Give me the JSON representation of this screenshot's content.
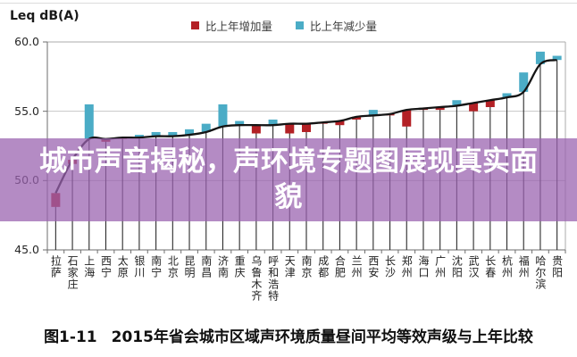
{
  "page": {
    "banner_text": "城市声音揭秘，声环境专题图展现真实面貌",
    "caption_fig": "图1-11",
    "caption_text": "2015年省会城市区域声环境质量昼间平均等效声级与上年比较"
  },
  "chart_data": {
    "type": "line+bar",
    "title": "Leq dB(A)",
    "ylabel": "Leq dB(A)",
    "ylim": [
      45,
      60
    ],
    "yticks": [
      "45.0",
      "50.0",
      "55.0",
      "60.0"
    ],
    "grid": "horizontal",
    "legend_position": "top",
    "legend": [
      {
        "label": "比上年增加量",
        "color": "#b32025"
      },
      {
        "label": "比上年减少量",
        "color": "#4bacc6"
      }
    ],
    "cities": [
      "拉萨",
      "石家庄",
      "上海",
      "西宁",
      "太原",
      "银川",
      "南宁",
      "北京",
      "昆明",
      "南昌",
      "济南",
      "重庆",
      "乌鲁木齐",
      "呼和浩特",
      "天津",
      "南京",
      "成都",
      "合肥",
      "兰州",
      "西安",
      "长沙",
      "郑州",
      "海口",
      "广州",
      "沈阳",
      "武汉",
      "长春",
      "杭州",
      "福州",
      "哈尔滨",
      "贵阳"
    ],
    "values_2015_leq_db": [
      49.1,
      51.5,
      53.0,
      53.0,
      53.1,
      53.1,
      53.2,
      53.2,
      53.3,
      53.5,
      53.9,
      54.0,
      54.0,
      54.0,
      54.1,
      54.1,
      54.2,
      54.3,
      54.6,
      54.7,
      54.8,
      55.1,
      55.2,
      55.3,
      55.4,
      55.6,
      55.8,
      56.0,
      56.4,
      58.4,
      58.7
    ],
    "change_vs_previous_year": [
      1.0,
      0.3,
      -2.5,
      0.2,
      0.1,
      -0.2,
      -0.3,
      -0.3,
      -0.4,
      -0.6,
      -1.6,
      -0.3,
      0.6,
      -0.4,
      0.7,
      0.6,
      0.1,
      0.3,
      0.2,
      -0.4,
      0.1,
      1.2,
      0.1,
      0.2,
      -0.4,
      0.6,
      0.5,
      -0.3,
      -1.4,
      -0.9,
      -0.3
    ],
    "colors": {
      "increase": "#b32025",
      "decrease": "#4bacc6",
      "line": "#141414",
      "stem": "#2b2b2b",
      "grid": "#c6c6c6",
      "axis": "#6e6e6e",
      "border": "#ababab",
      "banner_overlay": "rgba(154,99,176,0.74)"
    }
  }
}
